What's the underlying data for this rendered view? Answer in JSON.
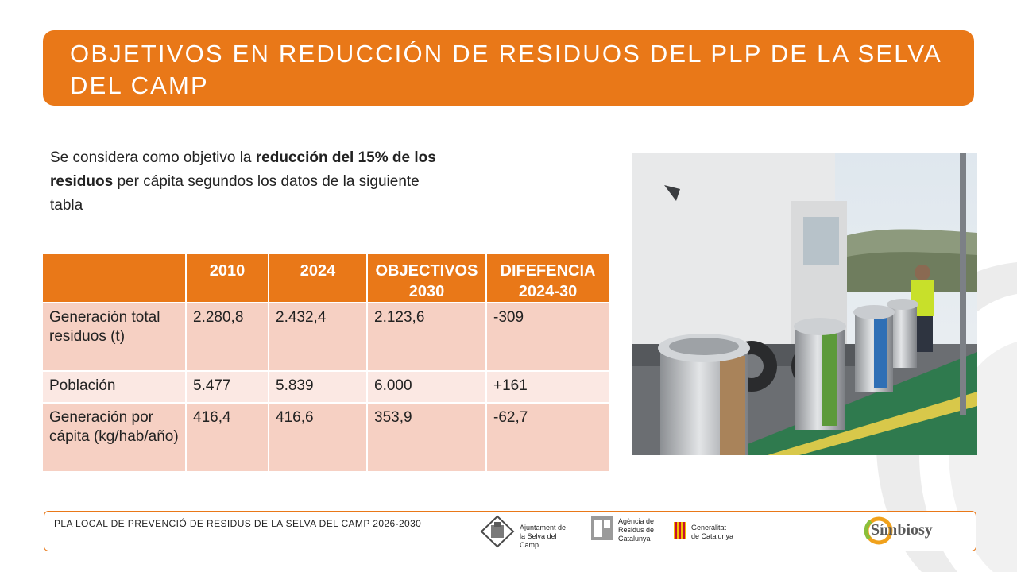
{
  "title": "OBJETIVOS EN REDUCCIÓN DE RESIDUOS DEL PLP DE LA SELVA DEL CAMP",
  "intro": {
    "part1": "Se considera como objetivo la ",
    "bold": "reducción del 15% de los residuos",
    "part2": " per cápita segundos los datos de la siguiente tabla"
  },
  "table": {
    "headers": [
      "",
      "2010",
      "2024",
      "OBJECTIVOS 2030",
      "DIFEFENCIA 2024-30"
    ],
    "rows": [
      [
        "Generación total residuos (t)",
        "2.280,8",
        "2.432,4",
        "2.123,6",
        "-309"
      ],
      [
        "Población",
        "5.477",
        "5.839",
        "6.000",
        "+161"
      ],
      [
        "Generación por cápita (kg/hab/año)",
        "416,4",
        "416,6",
        "353,9",
        "-62,7"
      ]
    ]
  },
  "footer": {
    "text": "PLA LOCAL DE PREVENCIÓ DE RESIDUS DE LA SELVA DEL CAMP 2026-2030",
    "logos": {
      "ajuntament_line1": "Ajuntament de",
      "ajuntament_line2": "la Selva del Camp",
      "agencia_line1": "Agència de",
      "agencia_line2": "Residus de",
      "agencia_line3": "Catalunya",
      "generalitat_line1": "Generalitat",
      "generalitat_line2": "de Catalunya",
      "simbiosy": "Símbiosy"
    }
  },
  "colors": {
    "accent": "#e97818",
    "row_dark": "#f6d0c3",
    "row_light": "#fbe8e3"
  }
}
